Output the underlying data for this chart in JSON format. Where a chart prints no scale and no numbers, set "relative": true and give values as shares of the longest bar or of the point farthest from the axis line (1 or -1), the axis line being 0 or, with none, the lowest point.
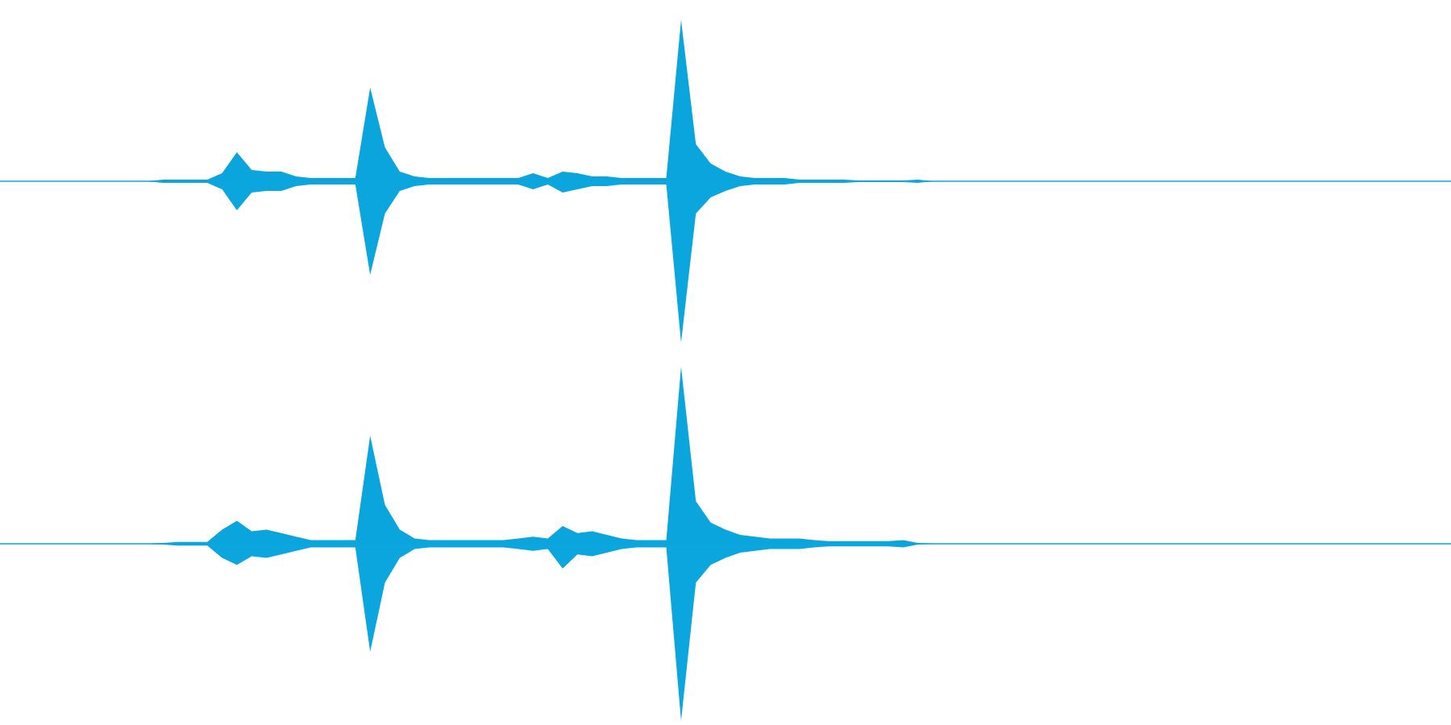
{
  "chart_data": [
    {
      "type": "area",
      "relative": true,
      "categories": [
        null,
        null,
        null,
        null,
        null,
        null,
        null,
        null,
        null,
        null,
        null,
        null,
        null,
        null,
        null,
        null,
        null,
        null,
        null,
        null,
        null,
        null,
        null,
        null,
        null,
        null,
        null,
        null,
        null,
        null,
        null,
        null,
        null,
        null,
        null,
        null,
        null,
        null,
        null,
        null,
        null,
        null,
        null,
        null,
        null,
        null,
        null,
        null,
        null,
        null,
        null,
        null,
        null,
        null,
        null,
        null,
        null,
        null,
        null,
        null,
        null,
        null,
        null,
        null,
        null,
        null,
        null,
        null,
        null,
        null,
        null,
        null,
        null,
        null,
        null,
        null,
        null,
        null,
        null,
        null,
        null,
        null,
        null,
        null,
        null,
        null,
        null,
        null,
        null,
        null,
        null,
        null,
        null,
        null,
        null,
        null,
        null,
        null,
        null
      ],
      "legend": false,
      "series": [
        {
          "color": "#0aa5dc",
          "values": [
            0,
            0,
            0,
            0,
            0,
            0,
            0,
            0,
            0,
            0,
            0,
            0.01,
            0.01,
            0.01,
            0.01,
            0.05,
            0.18,
            0.07,
            0.06,
            0.06,
            0.03,
            0.02,
            0.02,
            0.02,
            0.02,
            0.58,
            0.21,
            0.06,
            0.03,
            0.02,
            0.02,
            0.02,
            0.02,
            0.02,
            0.02,
            0.02,
            0.05,
            0.02,
            0.06,
            0.05,
            0.03,
            0.03,
            0.02,
            0.02,
            0.02,
            0.02,
            1.0,
            0.23,
            0.11,
            0.06,
            0.03,
            0.02,
            0.02,
            0.02,
            0.01,
            0.01,
            0.01,
            0.01,
            0.005,
            0.005,
            0.005,
            0.005,
            0.01,
            0,
            0,
            0,
            0,
            0,
            0,
            0,
            0,
            0,
            0,
            0,
            0,
            0,
            0,
            0,
            0,
            0,
            0,
            0,
            0,
            0,
            0,
            0,
            0,
            0,
            0,
            0,
            0,
            0,
            0,
            0,
            0,
            0,
            0,
            0,
            0
          ]
        },
        {
          "color": "#0ba6dd",
          "values": [
            0,
            0,
            0,
            0,
            0,
            0,
            0,
            0,
            0,
            0,
            0,
            -0.01,
            -0.01,
            -0.01,
            -0.01,
            -0.05,
            -0.18,
            -0.07,
            -0.06,
            -0.06,
            -0.03,
            -0.02,
            -0.02,
            -0.02,
            -0.02,
            -0.58,
            -0.2,
            -0.06,
            -0.03,
            -0.02,
            -0.02,
            -0.02,
            -0.02,
            -0.02,
            -0.02,
            -0.02,
            -0.05,
            -0.02,
            -0.07,
            -0.05,
            -0.03,
            -0.03,
            -0.02,
            -0.02,
            -0.02,
            -0.02,
            -1.0,
            -0.2,
            -0.1,
            -0.06,
            -0.03,
            -0.02,
            -0.02,
            -0.02,
            -0.01,
            -0.01,
            -0.01,
            -0.01,
            -0.005,
            -0.005,
            -0.005,
            -0.005,
            -0.01,
            0,
            0,
            0,
            0,
            0,
            0,
            0,
            0,
            0,
            0,
            0,
            0,
            0,
            0,
            0,
            0,
            0,
            0,
            0,
            0,
            0,
            0,
            0,
            0,
            0,
            0,
            0,
            0,
            0,
            0,
            0,
            0,
            0,
            0,
            0,
            0
          ]
        }
      ]
    },
    {
      "type": "area",
      "relative": true,
      "categories": [
        null,
        null,
        null,
        null,
        null,
        null,
        null,
        null,
        null,
        null,
        null,
        null,
        null,
        null,
        null,
        null,
        null,
        null,
        null,
        null,
        null,
        null,
        null,
        null,
        null,
        null,
        null,
        null,
        null,
        null,
        null,
        null,
        null,
        null,
        null,
        null,
        null,
        null,
        null,
        null,
        null,
        null,
        null,
        null,
        null,
        null,
        null,
        null,
        null,
        null,
        null,
        null,
        null,
        null,
        null,
        null,
        null,
        null,
        null,
        null,
        null,
        null,
        null,
        null,
        null,
        null,
        null,
        null,
        null,
        null,
        null,
        null,
        null,
        null,
        null,
        null,
        null,
        null,
        null,
        null,
        null,
        null,
        null,
        null,
        null,
        null,
        null,
        null,
        null,
        null,
        null,
        null,
        null,
        null,
        null,
        null,
        null,
        null,
        null
      ],
      "legend": false,
      "series": [
        {
          "color": "#0aa5dc",
          "values": [
            0,
            0,
            0,
            0,
            0,
            0,
            0,
            0,
            0,
            0,
            0,
            0.005,
            0.01,
            0.01,
            0.01,
            0.08,
            0.13,
            0.07,
            0.08,
            0.06,
            0.04,
            0.02,
            0.02,
            0.02,
            0.02,
            0.61,
            0.22,
            0.08,
            0.03,
            0.02,
            0.02,
            0.02,
            0.02,
            0.02,
            0.02,
            0.03,
            0.04,
            0.03,
            0.1,
            0.06,
            0.07,
            0.05,
            0.03,
            0.02,
            0.02,
            0.02,
            1.0,
            0.24,
            0.12,
            0.08,
            0.05,
            0.04,
            0.03,
            0.03,
            0.03,
            0.02,
            0.015,
            0.015,
            0.015,
            0.015,
            0.015,
            0.02,
            0.005,
            0,
            0,
            0,
            0,
            0,
            0,
            0,
            0,
            0,
            0,
            0,
            0,
            0,
            0,
            0,
            0,
            0,
            0,
            0,
            0,
            0,
            0,
            0,
            0,
            0,
            0,
            0,
            0,
            0,
            0,
            0,
            0,
            0,
            0,
            0,
            0
          ]
        },
        {
          "color": "#0ba6dd",
          "values": [
            0,
            0,
            0,
            0,
            0,
            0,
            0,
            0,
            0,
            0,
            0,
            -0.005,
            -0.01,
            -0.01,
            -0.01,
            -0.08,
            -0.12,
            -0.07,
            -0.08,
            -0.06,
            -0.04,
            -0.02,
            -0.02,
            -0.02,
            -0.02,
            -0.61,
            -0.22,
            -0.08,
            -0.03,
            -0.02,
            -0.02,
            -0.02,
            -0.02,
            -0.02,
            -0.02,
            -0.03,
            -0.04,
            -0.03,
            -0.14,
            -0.06,
            -0.07,
            -0.05,
            -0.03,
            -0.02,
            -0.02,
            -0.02,
            -1.0,
            -0.22,
            -0.12,
            -0.08,
            -0.05,
            -0.04,
            -0.03,
            -0.03,
            -0.03,
            -0.02,
            -0.015,
            -0.015,
            -0.015,
            -0.015,
            -0.015,
            -0.02,
            -0.005,
            0,
            0,
            0,
            0,
            0,
            0,
            0,
            0,
            0,
            0,
            0,
            0,
            0,
            0,
            0,
            0,
            0,
            0,
            0,
            0,
            0,
            0,
            0,
            0,
            0,
            0,
            0,
            0,
            0,
            0,
            0,
            0,
            0,
            0,
            0,
            0
          ]
        }
      ]
    }
  ]
}
